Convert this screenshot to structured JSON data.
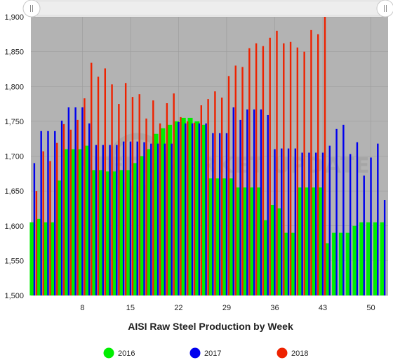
{
  "chart_data": {
    "type": "bar",
    "title": "AISI Raw Steel Production by Week",
    "xlabel": "AISI Raw Steel Production by Week",
    "ylabel": "",
    "watermark": "STEEL MARKET UPDATE",
    "xlim": [
      1,
      52
    ],
    "ylim": [
      1500,
      1900
    ],
    "y_ticks": [
      1500,
      1550,
      1600,
      1650,
      1700,
      1750,
      1800,
      1850,
      1900
    ],
    "y_tick_labels": [
      "1,500",
      "1,550",
      "1,600",
      "1,650",
      "1,700",
      "1,750",
      "1,800",
      "1,850",
      "1,900"
    ],
    "x_ticks": [
      8,
      15,
      22,
      29,
      36,
      43,
      50
    ],
    "x_tick_labels": [
      "8",
      "15",
      "22",
      "29",
      "36",
      "43",
      "50"
    ],
    "legend_position": "bottom",
    "grid": true,
    "series": [
      {
        "name": "2016",
        "color": "#00ee00",
        "x": [
          1,
          2,
          3,
          4,
          5,
          6,
          7,
          8,
          9,
          10,
          11,
          12,
          13,
          14,
          15,
          16,
          17,
          18,
          19,
          20,
          21,
          22,
          23,
          24,
          25,
          26,
          27,
          28,
          29,
          30,
          31,
          32,
          33,
          34,
          35,
          36,
          37,
          38,
          39,
          40,
          41,
          42,
          43,
          44,
          45,
          46,
          47,
          48,
          49,
          50,
          51,
          52
        ],
        "values": [
          1605,
          1610,
          1605,
          1605,
          1665,
          1710,
          1710,
          1710,
          1715,
          1680,
          1680,
          1678,
          1678,
          1680,
          1680,
          1690,
          1700,
          1710,
          1732,
          1740,
          1745,
          1750,
          1755,
          1755,
          1750,
          1745,
          1668,
          1668,
          1668,
          1668,
          1655,
          1655,
          1655,
          1655,
          1608,
          1630,
          1625,
          1590,
          1590,
          1655,
          1655,
          1655,
          1655,
          1575,
          1590,
          1590,
          1590,
          1600,
          1605,
          1605,
          1605,
          1605
        ]
      },
      {
        "name": "2017",
        "color": "#0000ee",
        "x": [
          1,
          2,
          3,
          4,
          5,
          6,
          7,
          8,
          9,
          10,
          11,
          12,
          13,
          14,
          15,
          16,
          17,
          18,
          19,
          20,
          21,
          22,
          23,
          24,
          25,
          26,
          27,
          28,
          29,
          30,
          31,
          32,
          33,
          34,
          35,
          36,
          37,
          38,
          39,
          40,
          41,
          42,
          43,
          44,
          45,
          46,
          47,
          48,
          49,
          50,
          51,
          52
        ],
        "values": [
          1690,
          1736,
          1736,
          1736,
          1751,
          1770,
          1770,
          1770,
          1747,
          1716,
          1716,
          1716,
          1716,
          1721,
          1721,
          1721,
          1720,
          1718,
          1718,
          1718,
          1718,
          1749,
          1747,
          1747,
          1747,
          1747,
          1733,
          1733,
          1733,
          1770,
          1752,
          1767,
          1767,
          1767,
          1759,
          1710,
          1711,
          1711,
          1711,
          1705,
          1705,
          1705,
          1705,
          1715,
          1739,
          1745,
          1703,
          1720,
          1672,
          1698,
          1718,
          1637
        ]
      },
      {
        "name": "2018",
        "color": "#ee2200",
        "x": [
          1,
          2,
          3,
          4,
          5,
          6,
          7,
          8,
          9,
          10,
          11,
          12,
          13,
          14,
          15,
          16,
          17,
          18,
          19,
          20,
          21,
          22,
          23,
          24,
          25,
          26,
          27,
          28,
          29,
          30,
          31,
          32,
          33,
          34,
          35,
          36,
          37,
          38,
          39,
          40,
          41,
          42,
          43
        ],
        "values": [
          1650,
          1707,
          1693,
          1719,
          1746,
          1738,
          1752,
          1783,
          1834,
          1814,
          1826,
          1803,
          1775,
          1805,
          1785,
          1789,
          1754,
          1780,
          1747,
          1776,
          1790,
          1756,
          1750,
          1748,
          1773,
          1782,
          1793,
          1784,
          1815,
          1830,
          1828,
          1855,
          1862,
          1858,
          1870,
          1880,
          1862,
          1864,
          1856,
          1850,
          1881,
          1875,
          1900
        ]
      }
    ]
  }
}
